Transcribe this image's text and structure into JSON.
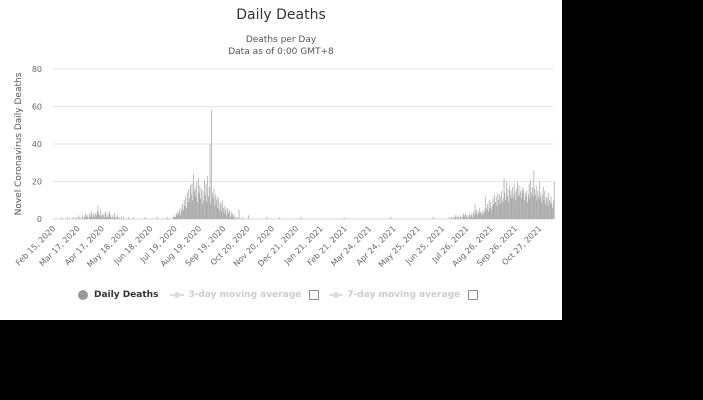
{
  "chart_data": {
    "type": "bar",
    "title": "Daily Deaths",
    "subtitle_lines": [
      "Deaths per Day",
      "Data as of 0:00 GMT+8"
    ],
    "ylabel": "Novel Coronavirus Daily Deaths",
    "xlabel": "",
    "ylim": [
      0,
      80
    ],
    "yticks": [
      0,
      20,
      40,
      60,
      80
    ],
    "grid": true,
    "start_date": "2020-02-15",
    "xtick_labels": [
      "Feb 15, 2020",
      "Mar 17, 2020",
      "Apr 17, 2020",
      "May 18, 2020",
      "Jun 18, 2020",
      "Jul 19, 2020",
      "Aug 19, 2020",
      "Sep 19, 2020",
      "Oct 20, 2020",
      "Nov 20, 2020",
      "Dec 21, 2020",
      "Jan 21, 2021",
      "Feb 21, 2021",
      "Mar 24, 2021",
      "Apr 24, 2021",
      "May 25, 2021",
      "Jun 25, 2021",
      "Jul 26, 2021",
      "Aug 26, 2021",
      "Sep 26, 2021",
      "Oct 27, 2021"
    ],
    "xtick_day_offsets": [
      0,
      31,
      62,
      93,
      124,
      155,
      186,
      217,
      248,
      279,
      310,
      341,
      372,
      403,
      434,
      465,
      496,
      527,
      558,
      589,
      620
    ],
    "series": [
      {
        "name": "Daily Deaths",
        "color": "#a6a6a6",
        "values": [
          0,
          0,
          0,
          0,
          0,
          0,
          0,
          1,
          0,
          0,
          0,
          0,
          0,
          0,
          1,
          0,
          0,
          0,
          0,
          0,
          0,
          1,
          0,
          0,
          1,
          0,
          1,
          0,
          2,
          0,
          1,
          0,
          0,
          2,
          1,
          0,
          1,
          3,
          2,
          1,
          2,
          0,
          3,
          1,
          2,
          4,
          1,
          3,
          2,
          1,
          3,
          2,
          4,
          7,
          3,
          2,
          5,
          1,
          2,
          3,
          2,
          1,
          3,
          4,
          1,
          2,
          1,
          3,
          4,
          2,
          1,
          0,
          2,
          1,
          3,
          1,
          0,
          1,
          2,
          0,
          1,
          0,
          0,
          1,
          0,
          0,
          1,
          0,
          0,
          0,
          0,
          0,
          1,
          0,
          0,
          0,
          0,
          0,
          1,
          0,
          0,
          0,
          0,
          0,
          0,
          0,
          0,
          0,
          0,
          0,
          0,
          0,
          0,
          1,
          0,
          0,
          0,
          0,
          0,
          0,
          0,
          0,
          0,
          0,
          0,
          0,
          0,
          0,
          0,
          1,
          0,
          0,
          0,
          0,
          0,
          0,
          0,
          0,
          0,
          0,
          0,
          0,
          1,
          0,
          0,
          0,
          0,
          0,
          0,
          1,
          1,
          2,
          1,
          3,
          2,
          4,
          3,
          5,
          2,
          6,
          4,
          8,
          5,
          10,
          7,
          12,
          6,
          14,
          9,
          16,
          11,
          18,
          13,
          19,
          10,
          24,
          15,
          17,
          12,
          20,
          9,
          22,
          14,
          18,
          11,
          16,
          8,
          15,
          10,
          21,
          13,
          19,
          9,
          23,
          12,
          17,
          40,
          8,
          58,
          14,
          11,
          16,
          7,
          13,
          10,
          12,
          6,
          11,
          5,
          9,
          8,
          4,
          10,
          6,
          3,
          7,
          5,
          2,
          6,
          4,
          3,
          5,
          1,
          4,
          2,
          3,
          1,
          2,
          0,
          1,
          0,
          1,
          0,
          5,
          0,
          0,
          0,
          1,
          0,
          0,
          0,
          0,
          0,
          0,
          0,
          2,
          0,
          0,
          0,
          0,
          0,
          0,
          0,
          0,
          0,
          0,
          0,
          0,
          0,
          0,
          0,
          0,
          0,
          0,
          0,
          0,
          0,
          0,
          1,
          0,
          0,
          0,
          0,
          0,
          0,
          0,
          0,
          0,
          0,
          0,
          0,
          0,
          0,
          0,
          0,
          1,
          0,
          0,
          0,
          0,
          0,
          0,
          0,
          0,
          0,
          0,
          0,
          0,
          0,
          0,
          0,
          0,
          0,
          0,
          0,
          0,
          0,
          0,
          0,
          0,
          0,
          0,
          1,
          0,
          0,
          0,
          0,
          0,
          0,
          0,
          0,
          0,
          0,
          0,
          0,
          0,
          0,
          0,
          0,
          0,
          0,
          0,
          0,
          0,
          0,
          0,
          0,
          0,
          0,
          0,
          0,
          0,
          0,
          0,
          0,
          0,
          0,
          0,
          0,
          0,
          0,
          0,
          0,
          0,
          0,
          0,
          0,
          0,
          0,
          0,
          0,
          0,
          0,
          0,
          0,
          0,
          0,
          1,
          0,
          0,
          0,
          0,
          0,
          0,
          0,
          0,
          0,
          0,
          0,
          0,
          0,
          0,
          0,
          0,
          0,
          0,
          0,
          0,
          0,
          0,
          0,
          0,
          0,
          0,
          0,
          0,
          0,
          0,
          0,
          0,
          0,
          0,
          0,
          0,
          0,
          0,
          0,
          0,
          0,
          0,
          0,
          0,
          0,
          0,
          0,
          0,
          0,
          0,
          0,
          0,
          0,
          0,
          0,
          0,
          0,
          0,
          1,
          0,
          0,
          0,
          0,
          0,
          0,
          0,
          0,
          0,
          0,
          0,
          0,
          0,
          0,
          0,
          0,
          0,
          0,
          0,
          0,
          0,
          0,
          0,
          0,
          0,
          0,
          0,
          0,
          0,
          0,
          0,
          0,
          0,
          0,
          0,
          0,
          0,
          0,
          0,
          0,
          0,
          0,
          0,
          0,
          0,
          0,
          0,
          0,
          0,
          0,
          0,
          0,
          0,
          0,
          1,
          0,
          0,
          0,
          0,
          0,
          0,
          0,
          0,
          0,
          0,
          0,
          0,
          0,
          0,
          0,
          0,
          0,
          0,
          0,
          1,
          0,
          0,
          1,
          0,
          1,
          0,
          1,
          2,
          1,
          0,
          2,
          1,
          0,
          1,
          2,
          0,
          1,
          3,
          2,
          1,
          3,
          2,
          1,
          0,
          2,
          3,
          1,
          2,
          3,
          1,
          4,
          2,
          8,
          3,
          5,
          2,
          4,
          3,
          6,
          4,
          3,
          2,
          5,
          3,
          4,
          12,
          6,
          5,
          8,
          4,
          10,
          6,
          9,
          5,
          7,
          11,
          8,
          13,
          9,
          12,
          7,
          14,
          10,
          13,
          8,
          12,
          15,
          9,
          11,
          22,
          14,
          10,
          20,
          12,
          16,
          9,
          18,
          13,
          15,
          11,
          17,
          12,
          19,
          14,
          10,
          16,
          20,
          12,
          18,
          13,
          15,
          11,
          17,
          14,
          16,
          10,
          14,
          12,
          15,
          9,
          13,
          19,
          11,
          21,
          14,
          17,
          12,
          26,
          16,
          13,
          18,
          10,
          15,
          12,
          20,
          11,
          14,
          9,
          13,
          17,
          10,
          15,
          8,
          12,
          11,
          7,
          14,
          10,
          9,
          12,
          8,
          6,
          10,
          20
        ]
      }
    ]
  },
  "legend": {
    "items": [
      {
        "label": "Daily Deaths",
        "active": true
      },
      {
        "label": "3-day moving average",
        "active": false
      },
      {
        "label": "7-day moving average",
        "active": false
      }
    ]
  }
}
